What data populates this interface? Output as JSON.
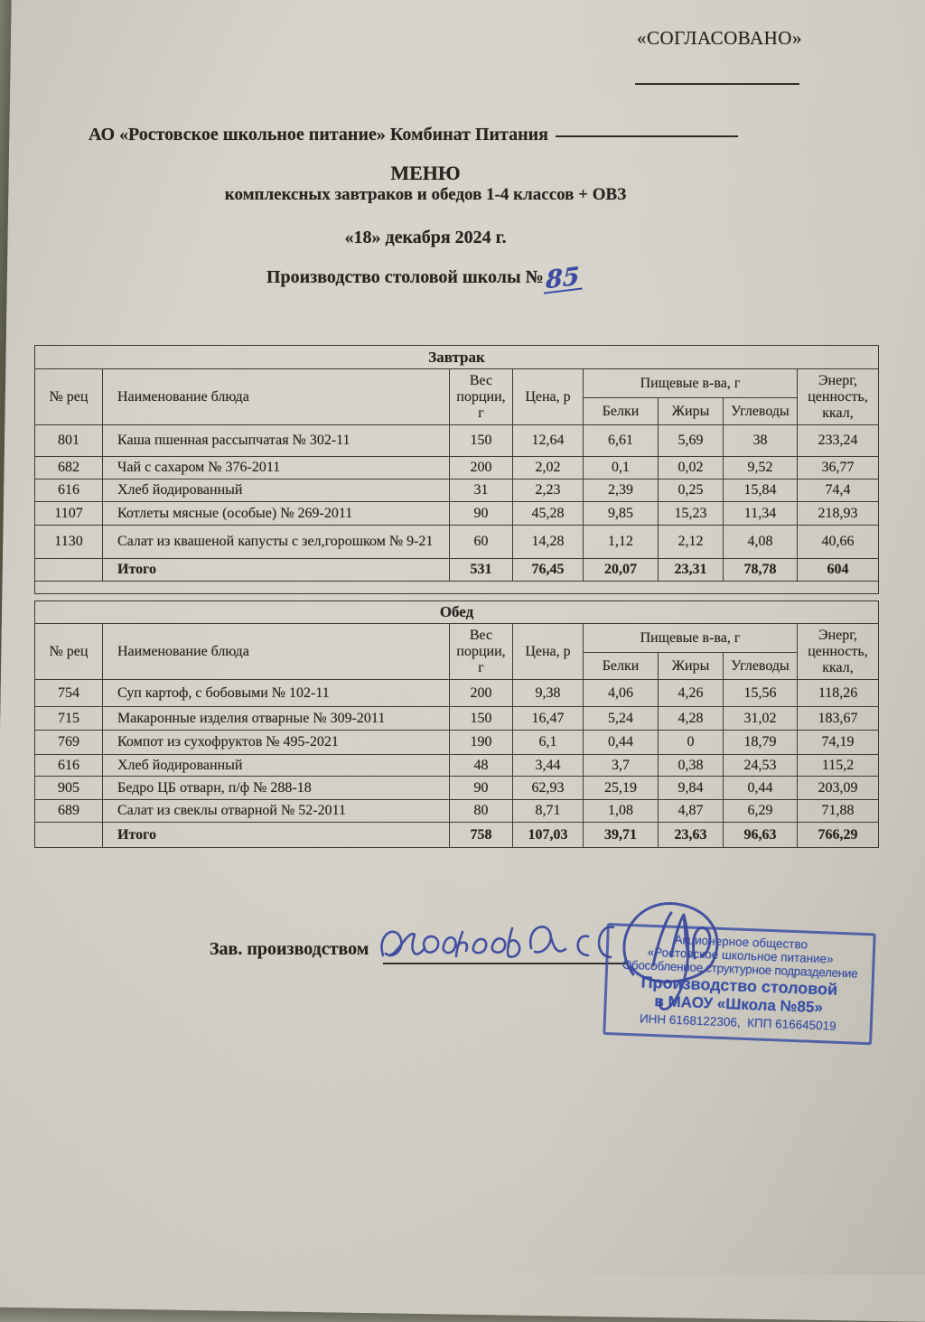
{
  "approval": {
    "label": "«СОГЛАСОВАНО»"
  },
  "header": {
    "organization": "АО «Ростовское школьное питание» Комбинат Питания",
    "title": "МЕНЮ",
    "subtitle": "комплексных завтраков и обедов 1-4 классов + ОВЗ",
    "date_line": "«18» декабря 2024 г.",
    "school_line": "Производство столовой школы №",
    "school_number_handwritten": "85"
  },
  "table_headers": {
    "rec": "№ рец",
    "dish": "Наименование блюда",
    "weight": "Вес порции, г",
    "price": "Цена, р",
    "nutrients": "Пищевые в-ва, г",
    "protein": "Белки",
    "fat": "Жиры",
    "carbs": "Углеводы",
    "energy": "Энерг, ценность, ккал,"
  },
  "sections": [
    {
      "title": "Завтрак",
      "rows": [
        {
          "rec": "801",
          "dish": "Каша пшенная рассыпчатая № 302-11",
          "weight": "150",
          "price": "12,64",
          "protein": "6,61",
          "fat": "5,69",
          "carbs": "38",
          "energy": "233,24"
        },
        {
          "rec": "682",
          "dish": "Чай с сахаром № 376-2011",
          "weight": "200",
          "price": "2,02",
          "protein": "0,1",
          "fat": "0,02",
          "carbs": "9,52",
          "energy": "36,77"
        },
        {
          "rec": "616",
          "dish": "Хлеб йодированный",
          "weight": "31",
          "price": "2,23",
          "protein": "2,39",
          "fat": "0,25",
          "carbs": "15,84",
          "energy": "74,4"
        },
        {
          "rec": "1107",
          "dish": "Котлеты мясные (особые) № 269-2011",
          "weight": "90",
          "price": "45,28",
          "protein": "9,85",
          "fat": "15,23",
          "carbs": "11,34",
          "energy": "218,93"
        },
        {
          "rec": "1130",
          "dish": "Салат из квашеной капусты с зел,горошком № 9-21",
          "weight": "60",
          "price": "14,28",
          "protein": "1,12",
          "fat": "2,12",
          "carbs": "4,08",
          "energy": "40,66"
        }
      ],
      "total": {
        "label": "Итого",
        "weight": "531",
        "price": "76,45",
        "protein": "20,07",
        "fat": "23,31",
        "carbs": "78,78",
        "energy": "604"
      }
    },
    {
      "title": "Обед",
      "rows": [
        {
          "rec": "754",
          "dish": "Суп картоф, с бобовыми № 102-11",
          "weight": "200",
          "price": "9,38",
          "protein": "4,06",
          "fat": "4,26",
          "carbs": "15,56",
          "energy": "118,26"
        },
        {
          "rec": "715",
          "dish": "Макаронные изделия отварные № 309-2011",
          "weight": "150",
          "price": "16,47",
          "protein": "5,24",
          "fat": "4,28",
          "carbs": "31,02",
          "energy": "183,67"
        },
        {
          "rec": "769",
          "dish": "Компот из сухофруктов № 495-2021",
          "weight": "190",
          "price": "6,1",
          "protein": "0,44",
          "fat": "0",
          "carbs": "18,79",
          "energy": "74,19"
        },
        {
          "rec": "616",
          "dish": "Хлеб йодированный",
          "weight": "48",
          "price": "3,44",
          "protein": "3,7",
          "fat": "0,38",
          "carbs": "24,53",
          "energy": "115,2"
        },
        {
          "rec": "905",
          "dish": "Бедро ЦБ отварн, п/ф № 288-18",
          "weight": "90",
          "price": "62,93",
          "protein": "25,19",
          "fat": "9,84",
          "carbs": "0,44",
          "energy": "203,09"
        },
        {
          "rec": "689",
          "dish": "Салат из свеклы отварной № 52-2011",
          "weight": "80",
          "price": "8,71",
          "protein": "1,08",
          "fat": "4,87",
          "carbs": "6,29",
          "energy": "71,88"
        }
      ],
      "total": {
        "label": "Итого",
        "weight": "758",
        "price": "107,03",
        "protein": "39,71",
        "fat": "23,63",
        "carbs": "96,63",
        "energy": "766,29"
      }
    }
  ],
  "signature": {
    "label": "Зав. производством"
  },
  "stamp": {
    "line1": "Акционерное общество",
    "line2": "«Ростовское школьное питание»",
    "line3": "Обособленное структурное подразделение",
    "line4": "Производство столовой",
    "line5": "в МАОУ «Школа №85»",
    "line6": "ИНН 6168122306,  КПП 616645019"
  },
  "colors": {
    "paper": "#d3d0c7",
    "ink_blue": "#39479e",
    "stamp_blue": "#3a51a6",
    "text": "#26241f"
  }
}
